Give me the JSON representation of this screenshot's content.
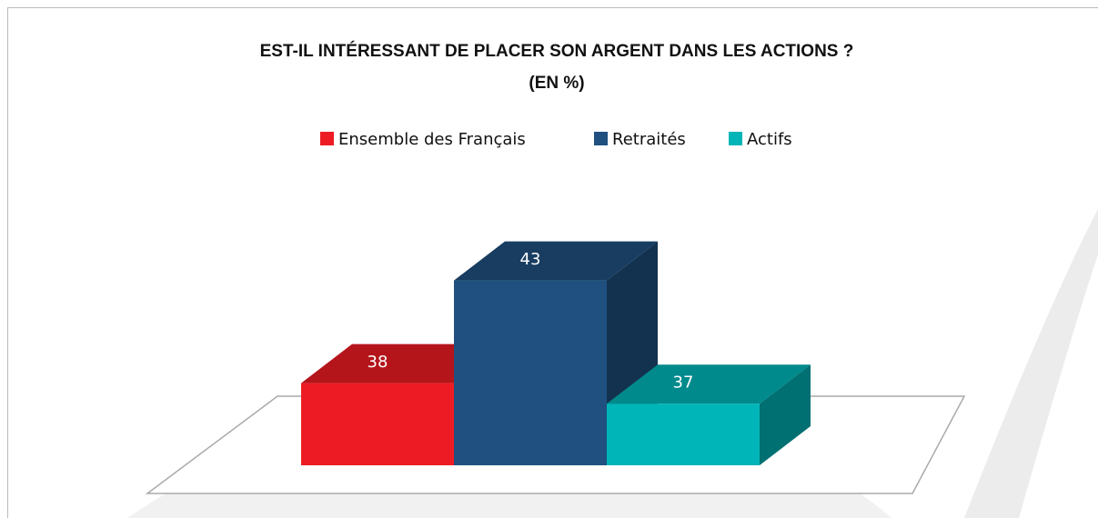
{
  "chart_data": {
    "type": "bar3d",
    "title": "EST-IL INTÉRESSANT DE PLACER SON ARGENT DANS  LES ACTIONS ?",
    "subtitle": "(EN %)",
    "series": [
      {
        "name": "Ensemble des Français",
        "color": "#ed1c24",
        "values": [
          38
        ]
      },
      {
        "name": "Retraités",
        "color": "#1f5080",
        "values": [
          43
        ]
      },
      {
        "name": "Actifs",
        "color": "#00b5b8",
        "values": [
          37
        ]
      }
    ]
  }
}
